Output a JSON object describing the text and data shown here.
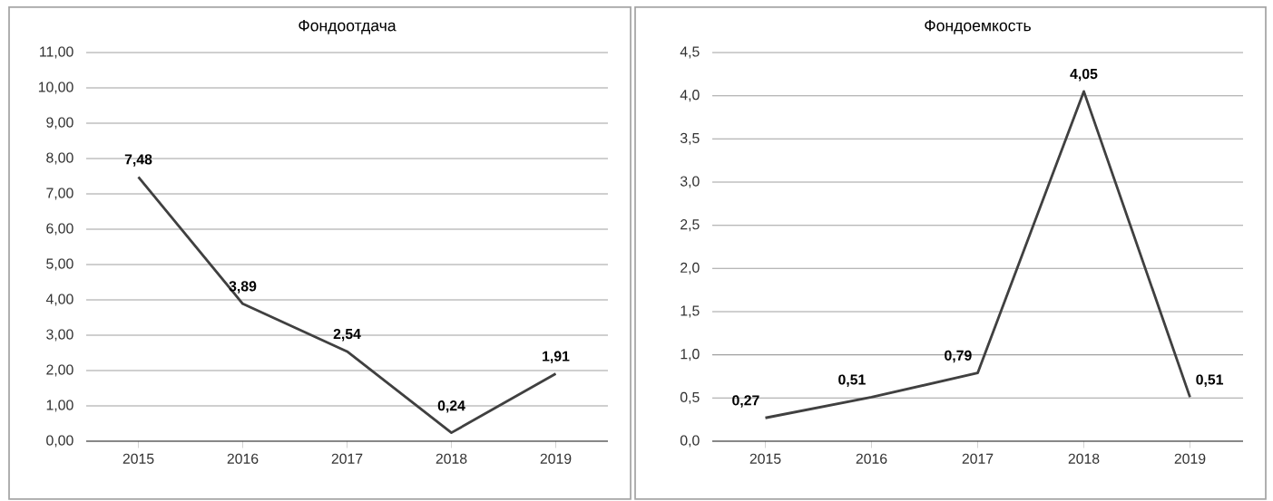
{
  "chart_data": [
    {
      "type": "line",
      "title": "Фондоотдача",
      "categories": [
        "2015",
        "2016",
        "2017",
        "2018",
        "2019"
      ],
      "series": [
        {
          "color": "#404040",
          "values": [
            7.48,
            3.89,
            2.54,
            0.24,
            1.91
          ],
          "value_labels": [
            "7,48",
            "3,89",
            "2,54",
            "0,24",
            "1,91"
          ]
        }
      ],
      "ylim": [
        0,
        11
      ],
      "yticks": [
        {
          "value": 0,
          "label": "0,00"
        },
        {
          "value": 1,
          "label": "1,00"
        },
        {
          "value": 2,
          "label": "2,00"
        },
        {
          "value": 3,
          "label": "3,00"
        },
        {
          "value": 4,
          "label": "4,00"
        },
        {
          "value": 5,
          "label": "5,00"
        },
        {
          "value": 6,
          "label": "6,00"
        },
        {
          "value": 7,
          "label": "7,00"
        },
        {
          "value": 8,
          "label": "8,00"
        },
        {
          "value": 9,
          "label": "9,00"
        },
        {
          "value": 10,
          "label": "10,00"
        },
        {
          "value": 11,
          "label": "11,00"
        }
      ],
      "grid": "y"
    },
    {
      "type": "line",
      "title": "Фондоемкость",
      "categories": [
        "2015",
        "2016",
        "2017",
        "2018",
        "2019"
      ],
      "series": [
        {
          "color": "#404040",
          "values": [
            0.27,
            0.51,
            0.79,
            4.05,
            0.51
          ],
          "value_labels": [
            "0,27",
            "0,51",
            "0,79",
            "4,05",
            "0,51"
          ]
        }
      ],
      "ylim": [
        0,
        4.5
      ],
      "yticks": [
        {
          "value": 0,
          "label": "0,0"
        },
        {
          "value": 0.5,
          "label": "0,5"
        },
        {
          "value": 1,
          "label": "1,0"
        },
        {
          "value": 1.5,
          "label": "1,5"
        },
        {
          "value": 2,
          "label": "2,0"
        },
        {
          "value": 2.5,
          "label": "2,5"
        },
        {
          "value": 3,
          "label": "3,0"
        },
        {
          "value": 3.5,
          "label": "3,5"
        },
        {
          "value": 4,
          "label": "4,0"
        },
        {
          "value": 4.5,
          "label": "4,5"
        }
      ],
      "grid": "y"
    }
  ]
}
